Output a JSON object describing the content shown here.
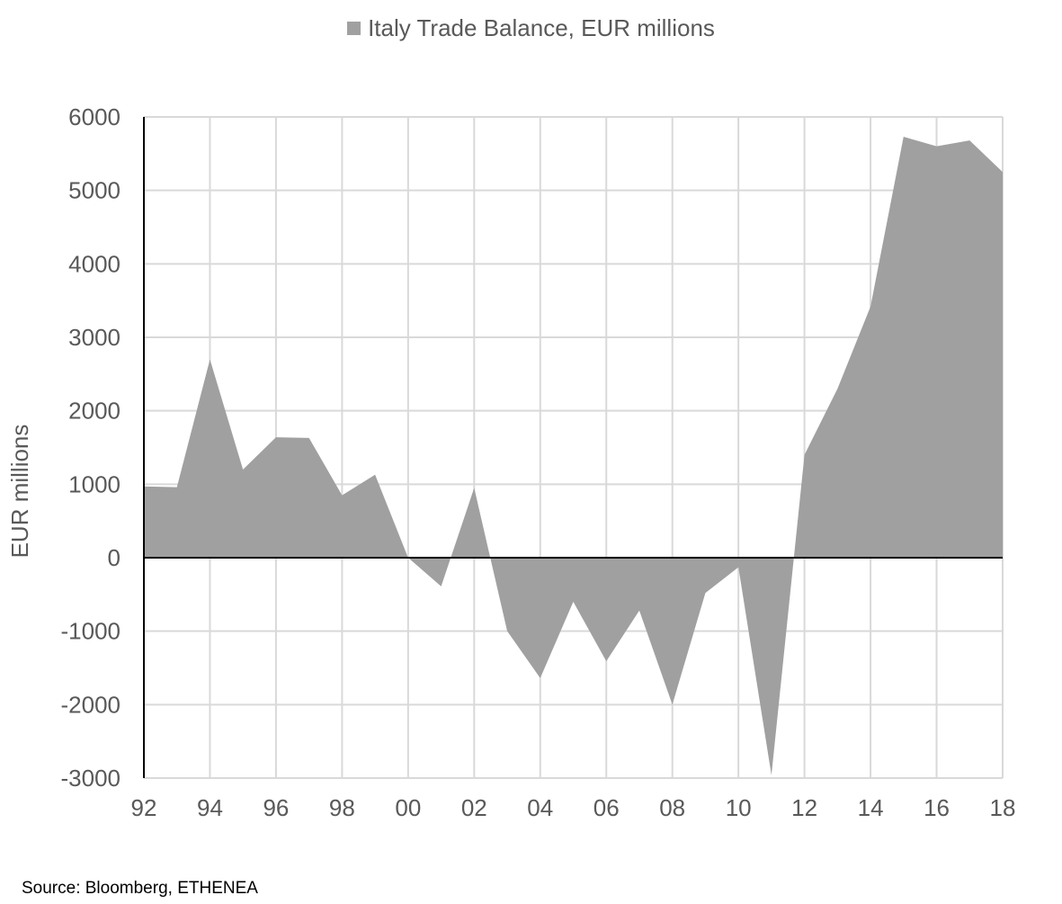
{
  "colors": {
    "area": "#a0a0a0",
    "grid": "#d9d9d9",
    "axis": "#000000",
    "text": "#595959"
  },
  "chart_data": {
    "type": "area",
    "title": "",
    "legend": {
      "position": "top-center",
      "entries": [
        "Italy Trade Balance, EUR millions"
      ]
    },
    "series": [
      {
        "name": "Italy Trade Balance, EUR millions",
        "values": [
          970,
          960,
          2700,
          1200,
          1640,
          1630,
          850,
          1130,
          0,
          -390,
          950,
          -1000,
          -1640,
          -600,
          -1410,
          -720,
          -2000,
          -480,
          -130,
          -2960,
          1400,
          2300,
          3420,
          5730,
          5600,
          5680,
          5250
        ]
      }
    ],
    "x": [
      "1992",
      "1993",
      "1994",
      "1995",
      "1996",
      "1997",
      "1998",
      "1999",
      "2000",
      "2001",
      "2002",
      "2003",
      "2004",
      "2005",
      "2006",
      "2007",
      "2008",
      "2009",
      "2010",
      "2011",
      "2012",
      "2013",
      "2014",
      "2015",
      "2016",
      "2017",
      "2018"
    ],
    "xticks": [
      "92",
      "94",
      "96",
      "98",
      "00",
      "02",
      "04",
      "06",
      "08",
      "10",
      "12",
      "14",
      "16",
      "18"
    ],
    "yticks": [
      6000,
      5000,
      4000,
      3000,
      2000,
      1000,
      0,
      -1000,
      -2000,
      -3000
    ],
    "xlabel": "",
    "ylabel": "EUR millions",
    "ylim": [
      -3000,
      6000
    ],
    "grid": true
  },
  "footer": {
    "source": "Source: Bloomberg, ETHENEA"
  }
}
